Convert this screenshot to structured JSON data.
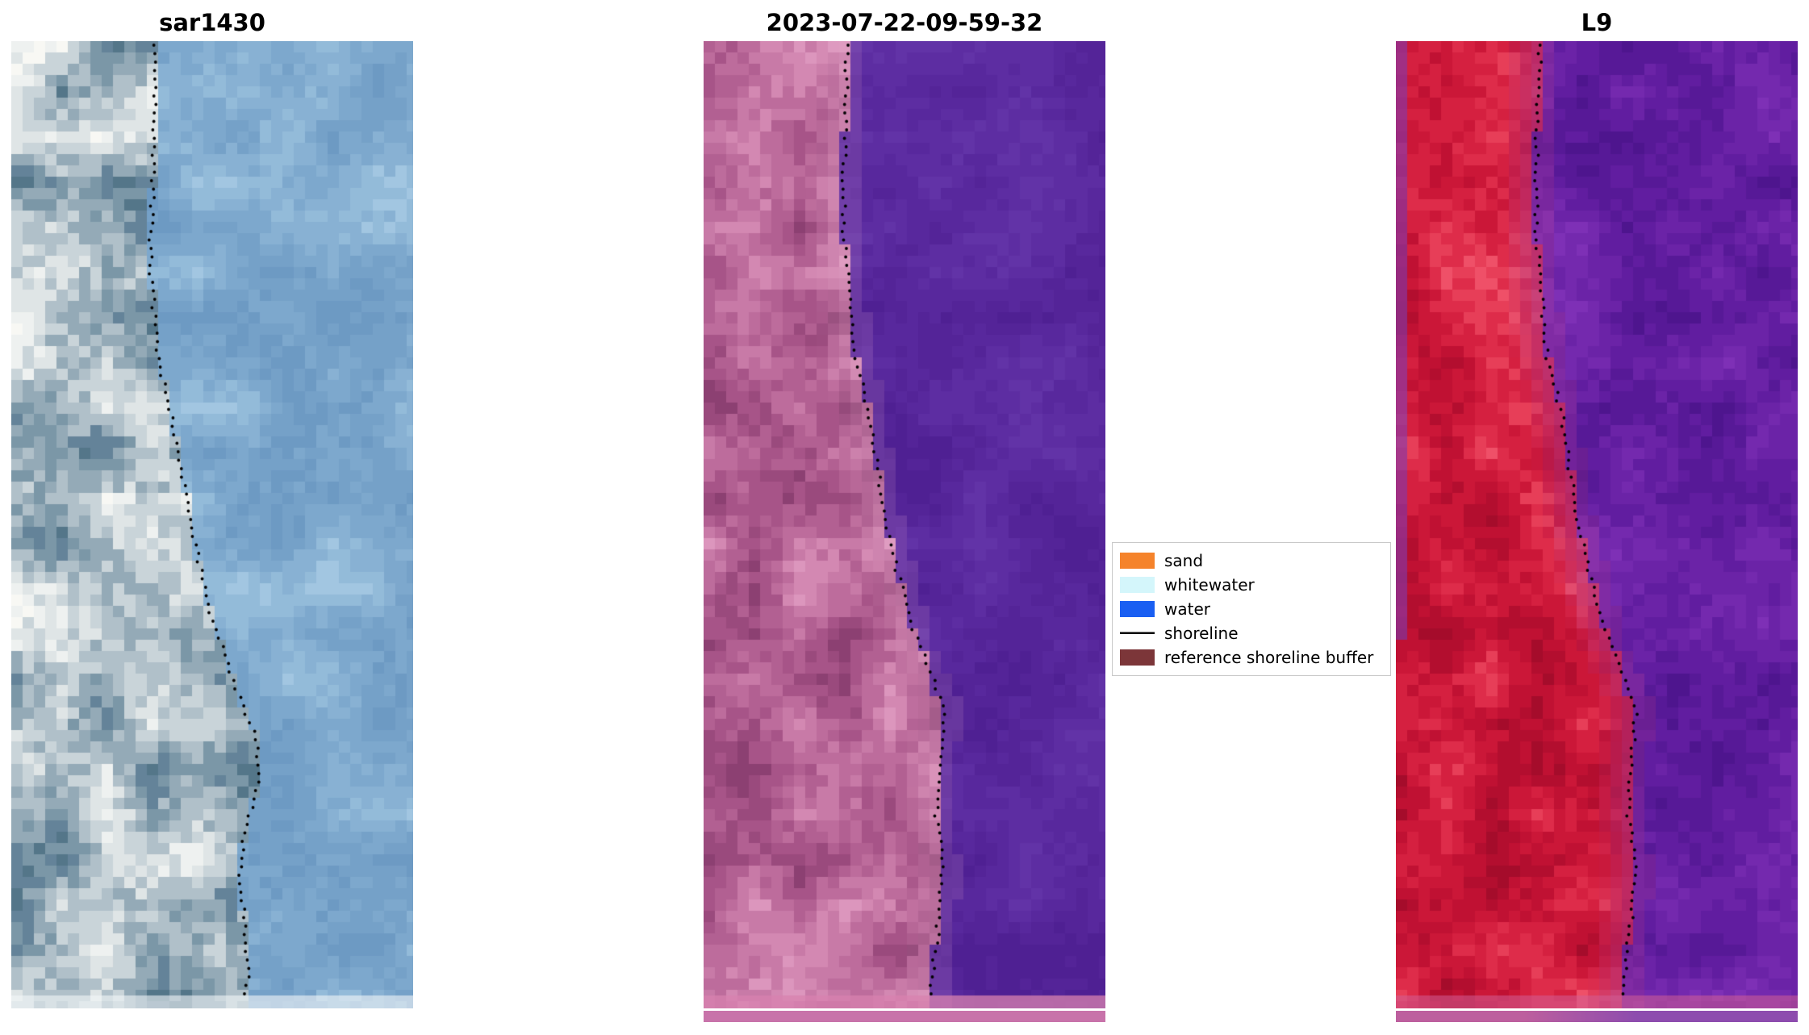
{
  "chart_data": {
    "type": "heatmap",
    "subtype": "satellite-image-panels-with-shoreline-overlay",
    "grid": "off",
    "axes": "off",
    "legend_position": "center-right",
    "panels": [
      {
        "title": "sar1430",
        "seed": 7,
        "blocky": false,
        "land_palette": [
          "#f8f8f4",
          "#eef1f0",
          "#dfe5e6",
          "#c9d4d9",
          "#b0c0c9",
          "#94aab7",
          "#7b97a7",
          "#648399",
          "#547689"
        ],
        "water_palette": [
          "#a2c6e1",
          "#93bbd9",
          "#88b1d3",
          "#7da8cd",
          "#75a1c8",
          "#6d9ac3"
        ],
        "edge_blend": null,
        "left_edge_color": null,
        "shoreline_color": "#000000",
        "shoreline": [
          [
            0,
            0.353
          ],
          [
            0.08,
            0.357
          ],
          [
            0.15,
            0.352
          ],
          [
            0.22,
            0.345
          ],
          [
            0.28,
            0.355
          ],
          [
            0.34,
            0.371
          ],
          [
            0.39,
            0.4
          ],
          [
            0.43,
            0.418
          ],
          [
            0.48,
            0.44
          ],
          [
            0.53,
            0.462
          ],
          [
            0.58,
            0.487
          ],
          [
            0.625,
            0.523
          ],
          [
            0.67,
            0.558
          ],
          [
            0.72,
            0.61
          ],
          [
            0.765,
            0.618
          ],
          [
            0.815,
            0.582
          ],
          [
            0.865,
            0.566
          ],
          [
            0.91,
            0.58
          ],
          [
            0.96,
            0.588
          ],
          [
            1,
            0.583
          ]
        ],
        "bottom_overlay": "rgba(244,247,248,0.6)",
        "strip": null
      },
      {
        "title": "2023-07-22-09-59-32",
        "seed": 13,
        "blocky": true,
        "land_palette": [
          "#dc96bd",
          "#d388b2",
          "#c87aa7",
          "#bd6c9c",
          "#b26092",
          "#a75488",
          "#9a4a7d",
          "#8c4072"
        ],
        "water_palette": [
          "#6233a7",
          "#5d2da2",
          "#58289d",
          "#542498",
          "#4f2093"
        ],
        "edge_blend": {
          "color": "#e5a9ca",
          "strength": 0.35
        },
        "left_edge_color": null,
        "shoreline_color": "#000000",
        "shoreline": [
          [
            0,
            0.359
          ],
          [
            0.07,
            0.354
          ],
          [
            0.14,
            0.348
          ],
          [
            0.2,
            0.35
          ],
          [
            0.27,
            0.363
          ],
          [
            0.33,
            0.378
          ],
          [
            0.385,
            0.412
          ],
          [
            0.44,
            0.432
          ],
          [
            0.5,
            0.452
          ],
          [
            0.55,
            0.483
          ],
          [
            0.6,
            0.515
          ],
          [
            0.645,
            0.558
          ],
          [
            0.69,
            0.597
          ],
          [
            0.745,
            0.588
          ],
          [
            0.8,
            0.579
          ],
          [
            0.85,
            0.597
          ],
          [
            0.9,
            0.588
          ],
          [
            0.95,
            0.574
          ],
          [
            1,
            0.561
          ]
        ],
        "bottom_overlay": "rgba(216,130,175,0.75)",
        "strip": {
          "colors": [
            "#c873aa",
            "#c873aa"
          ]
        }
      },
      {
        "title": "L9",
        "seed": 21,
        "blocky": true,
        "land_palette": [
          "#ef5068",
          "#e73e58",
          "#de2c4a",
          "#d52040",
          "#cb1738",
          "#c01133",
          "#b30e2f",
          "#a50c2b"
        ],
        "water_palette": [
          "#7e30b6",
          "#7429ae",
          "#6b23a7",
          "#611da0",
          "#571997",
          "#4e158e"
        ],
        "edge_blend": {
          "color": "#a63386",
          "strength": 0.6
        },
        "left_edge_color": "#8b35a0",
        "shoreline_color": "#000000",
        "shoreline": [
          [
            0,
            0.359
          ],
          [
            0.07,
            0.354
          ],
          [
            0.14,
            0.348
          ],
          [
            0.2,
            0.35
          ],
          [
            0.27,
            0.363
          ],
          [
            0.33,
            0.378
          ],
          [
            0.385,
            0.412
          ],
          [
            0.44,
            0.432
          ],
          [
            0.5,
            0.452
          ],
          [
            0.55,
            0.483
          ],
          [
            0.6,
            0.515
          ],
          [
            0.645,
            0.558
          ],
          [
            0.69,
            0.597
          ],
          [
            0.745,
            0.588
          ],
          [
            0.8,
            0.579
          ],
          [
            0.85,
            0.597
          ],
          [
            0.9,
            0.588
          ],
          [
            0.95,
            0.574
          ],
          [
            1,
            0.561
          ]
        ],
        "bottom_overlay": "rgba(210,95,150,0.55)",
        "strip": {
          "colors": [
            "#bd5f9e",
            "#8d4cae"
          ]
        }
      }
    ],
    "legend": {
      "items": [
        {
          "label": "sand",
          "color": "#f5832b",
          "type": "patch"
        },
        {
          "label": "whitewater",
          "color": "#d4f6fb",
          "type": "patch"
        },
        {
          "label": "water",
          "color": "#1a5ff2",
          "type": "patch"
        },
        {
          "label": "shoreline",
          "color": "#000000",
          "type": "line"
        },
        {
          "label": "reference shoreline buffer",
          "color": "#7c3639",
          "type": "patch"
        }
      ]
    }
  }
}
